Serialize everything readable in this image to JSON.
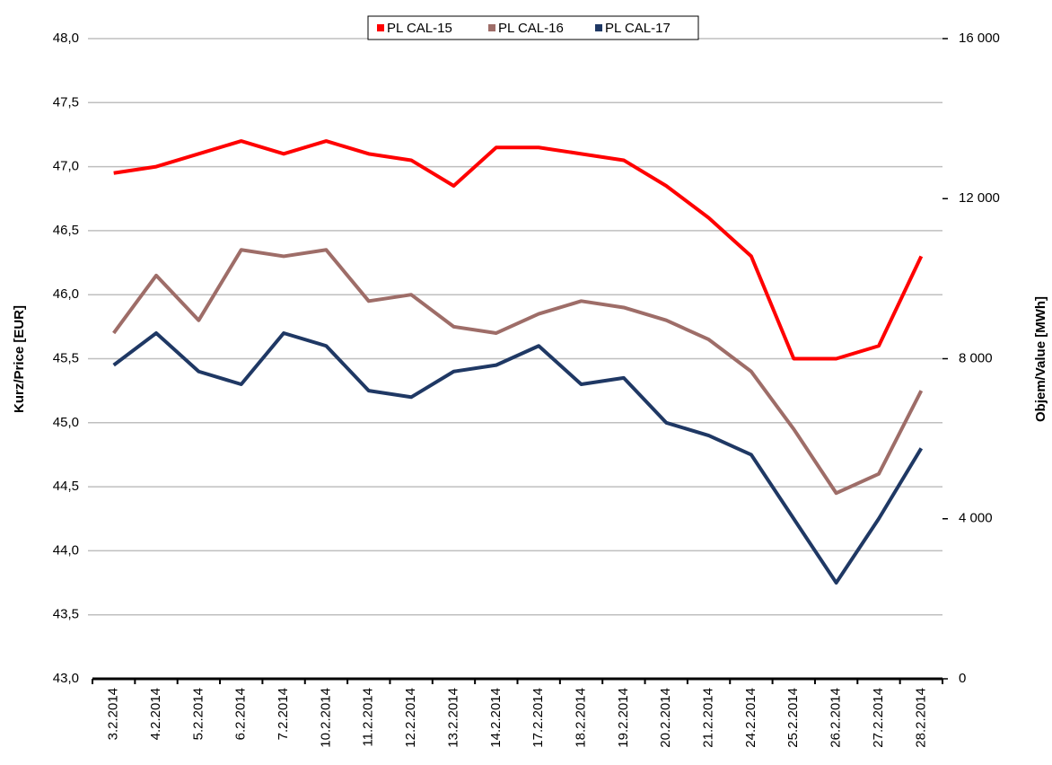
{
  "chart_data": {
    "type": "line",
    "y_label": "Kurz/Price [EUR]",
    "y2_label": "Objem/Value [MWh]",
    "categories": [
      "3.2.2014",
      "4.2.2014",
      "5.2.2014",
      "6.2.2014",
      "7.2.2014",
      "10.2.2014",
      "11.2.2014",
      "12.2.2014",
      "13.2.2014",
      "14.2.2014",
      "17.2.2014",
      "18.2.2014",
      "19.2.2014",
      "20.2.2014",
      "21.2.2014",
      "24.2.2014",
      "25.2.2014",
      "26.2.2014",
      "27.2.2014",
      "28.2.2014"
    ],
    "series": [
      {
        "name": "PL CAL-15",
        "color": "#ff0000",
        "values": [
          46.95,
          47.0,
          47.1,
          47.2,
          47.1,
          47.2,
          47.1,
          47.05,
          46.85,
          47.15,
          47.15,
          47.1,
          47.05,
          46.85,
          46.6,
          46.3,
          45.5,
          45.5,
          45.6,
          46.3
        ]
      },
      {
        "name": "PL CAL-16",
        "color": "#9e6d68",
        "values": [
          45.7,
          46.15,
          45.8,
          46.35,
          46.3,
          46.35,
          45.95,
          46.0,
          45.75,
          45.7,
          45.85,
          45.95,
          45.9,
          45.8,
          45.65,
          45.4,
          44.95,
          44.45,
          44.6,
          45.25
        ]
      },
      {
        "name": "PL CAL-17",
        "color": "#1f3864",
        "values": [
          45.45,
          45.7,
          45.4,
          45.3,
          45.7,
          45.6,
          45.25,
          45.2,
          45.4,
          45.45,
          45.6,
          45.3,
          45.35,
          45.0,
          44.9,
          44.75,
          44.25,
          43.75,
          44.25,
          44.8
        ]
      }
    ],
    "ylim": [
      43,
      48
    ],
    "yticks": [
      {
        "value": 43,
        "label": "43,0"
      },
      {
        "value": 43.5,
        "label": "43,5"
      },
      {
        "value": 44,
        "label": "44,0"
      },
      {
        "value": 44.5,
        "label": "44,5"
      },
      {
        "value": 45,
        "label": "45,0"
      },
      {
        "value": 45.5,
        "label": "45,5"
      },
      {
        "value": 46,
        "label": "46,0"
      },
      {
        "value": 46.5,
        "label": "46,5"
      },
      {
        "value": 47,
        "label": "47,0"
      },
      {
        "value": 47.5,
        "label": "47,5"
      },
      {
        "value": 48,
        "label": "48,0"
      }
    ],
    "y2lim": [
      0,
      16000
    ],
    "y2ticks": [
      0,
      {
        "value": 4000,
        "label": "4 000"
      },
      {
        "value": 8000,
        "label": "8 000"
      },
      {
        "value": 12000,
        "label": "12 000"
      },
      {
        "value": 16000,
        "label": "16 000"
      }
    ],
    "grid": true,
    "legend": "top"
  }
}
